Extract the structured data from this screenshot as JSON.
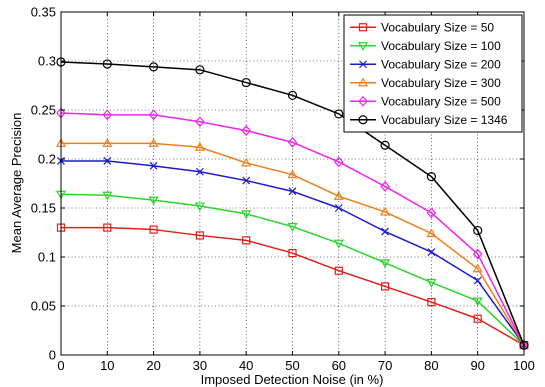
{
  "chart_data": {
    "type": "line",
    "title": "",
    "xlabel": "Imposed Detection Noise (in %)",
    "ylabel": "Mean Average Precision",
    "x": [
      0,
      10,
      20,
      30,
      40,
      50,
      60,
      70,
      80,
      90,
      100
    ],
    "xlim": [
      0,
      100
    ],
    "ylim": [
      0,
      0.35
    ],
    "xticks": [
      "0",
      "10",
      "20",
      "30",
      "40",
      "50",
      "60",
      "70",
      "80",
      "90",
      "100"
    ],
    "yticks": [
      "0",
      "0.05",
      "0.1",
      "0.15",
      "0.2",
      "0.25",
      "0.3",
      "0.35"
    ],
    "grid": true,
    "legend_position": "top-right",
    "series": [
      {
        "name": "Vocabulary Size = 50",
        "color": "#e0201b",
        "marker": "square",
        "values": [
          0.13,
          0.13,
          0.128,
          0.122,
          0.117,
          0.104,
          0.086,
          0.07,
          0.054,
          0.037,
          0.01
        ]
      },
      {
        "name": "Vocabulary Size = 100",
        "color": "#2ed42e",
        "marker": "triangle-down",
        "values": [
          0.164,
          0.163,
          0.158,
          0.152,
          0.144,
          0.131,
          0.114,
          0.094,
          0.074,
          0.055,
          0.01
        ]
      },
      {
        "name": "Vocabulary Size = 200",
        "color": "#1a1ac8",
        "marker": "x",
        "values": [
          0.198,
          0.198,
          0.193,
          0.187,
          0.178,
          0.167,
          0.15,
          0.126,
          0.105,
          0.076,
          0.01
        ]
      },
      {
        "name": "Vocabulary Size = 300",
        "color": "#f07f1b",
        "marker": "triangle-up",
        "values": [
          0.216,
          0.216,
          0.216,
          0.212,
          0.196,
          0.184,
          0.162,
          0.146,
          0.124,
          0.088,
          0.01
        ]
      },
      {
        "name": "Vocabulary Size = 500",
        "color": "#f024f0",
        "marker": "diamond",
        "values": [
          0.247,
          0.245,
          0.245,
          0.238,
          0.229,
          0.217,
          0.197,
          0.172,
          0.145,
          0.103,
          0.01
        ]
      },
      {
        "name": "Vocabulary Size = 1346",
        "color": "#000000",
        "marker": "circle",
        "values": [
          0.299,
          0.297,
          0.294,
          0.291,
          0.278,
          0.265,
          0.246,
          0.214,
          0.182,
          0.127,
          0.01
        ]
      }
    ]
  }
}
